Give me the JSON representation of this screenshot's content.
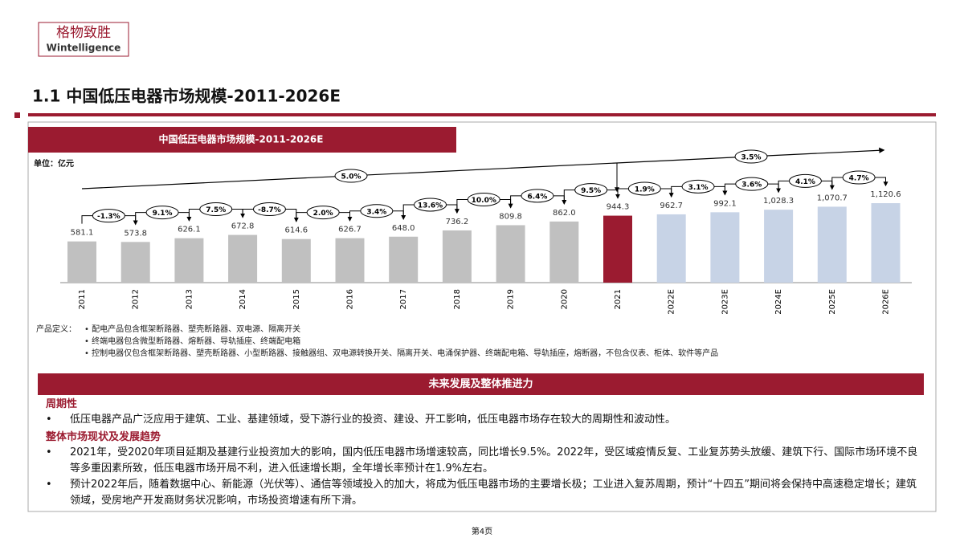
{
  "logo": {
    "cn": "格物致胜",
    "en": "Wintelligence"
  },
  "title": "1.1 中国低压电器市场规模-2011-2026E",
  "chart_data": {
    "type": "bar",
    "title": "中国低压电器市场规模-2011-2026E",
    "unit": "单位：亿元",
    "categories": [
      "2011",
      "2012",
      "2013",
      "2014",
      "2015",
      "2016",
      "2017",
      "2018",
      "2019",
      "2020",
      "2021",
      "2022E",
      "2023E",
      "2024E",
      "2025E",
      "2026E"
    ],
    "values": [
      581.1,
      573.8,
      626.1,
      672.8,
      614.6,
      626.7,
      648.0,
      736.2,
      809.8,
      862.0,
      944.3,
      962.7,
      992.1,
      1028.3,
      1070.7,
      1120.6
    ],
    "value_labels": [
      "581.1",
      "573.8",
      "626.1",
      "672.8",
      "614.6",
      "626.7",
      "648.0",
      "736.2",
      "809.8",
      "862.0",
      "944.3",
      "962.7",
      "992.1",
      "1,028.3",
      "1,070.7",
      "1,120.6"
    ],
    "colors": [
      "#c0c0c0",
      "#c0c0c0",
      "#c0c0c0",
      "#c0c0c0",
      "#c0c0c0",
      "#c0c0c0",
      "#c0c0c0",
      "#c0c0c0",
      "#c0c0c0",
      "#c0c0c0",
      "#9b1b30",
      "#c7d3e6",
      "#c7d3e6",
      "#c7d3e6",
      "#c7d3e6",
      "#c7d3e6"
    ],
    "growth_labels": [
      "-1.3%",
      "9.1%",
      "7.5%",
      "-8.7%",
      "2.0%",
      "3.4%",
      "13.6%",
      "10.0%",
      "6.4%",
      "9.5%",
      "1.9%",
      "3.1%",
      "3.6%",
      "4.1%",
      "4.7%"
    ],
    "cagr_labels": [
      "5.0%",
      "3.5%"
    ]
  },
  "definitions": {
    "label": "产品定义：",
    "items": [
      "配电产品包含框架断路器、塑壳断路器、双电源、隔离开关",
      "终端电器包含微型断路器、熔断器、导轨插座、终端配电箱",
      "控制电器仅包含框架断路器、塑壳断路器、小型断路器、接触器组、双电源转换开关、隔离开关、电涌保护器、终端配电箱、导轨插座，熔断器，不包含仪表、柜体、软件等产品"
    ]
  },
  "outlook": {
    "title": "未来发展及整体推进力",
    "sections": [
      {
        "heading": "周期性",
        "bullets": [
          "低压电器产品广泛应用于建筑、工业、基建领域，受下游行业的投资、建设、开工影响，低压电器市场存在较大的周期性和波动性。"
        ]
      },
      {
        "heading": "整体市场现状及发展趋势",
        "bullets": [
          "2021年，受2020年项目延期及基建行业投资加大的影响，国内低压电器市场增速较高，同比增长9.5%。2022年，受区域疫情反复、工业复苏势头放缓、建筑下行、国际市场环境不良等多重因素所致，低压电器市场开局不利，进入低速增长期，全年增长率预计在1.9%左右。",
          "预计2022年后，随着数据中心、新能源（光伏等）、通信等领域投入的加大，将成为低压电器市场的主要增长极；工业进入复苏周期，预计“十四五”期间将会保持中高速稳定增长；建筑领域，受房地产开发商财务状况影响，市场投资增速有所下滑。"
        ]
      }
    ]
  },
  "footer": "第4页"
}
